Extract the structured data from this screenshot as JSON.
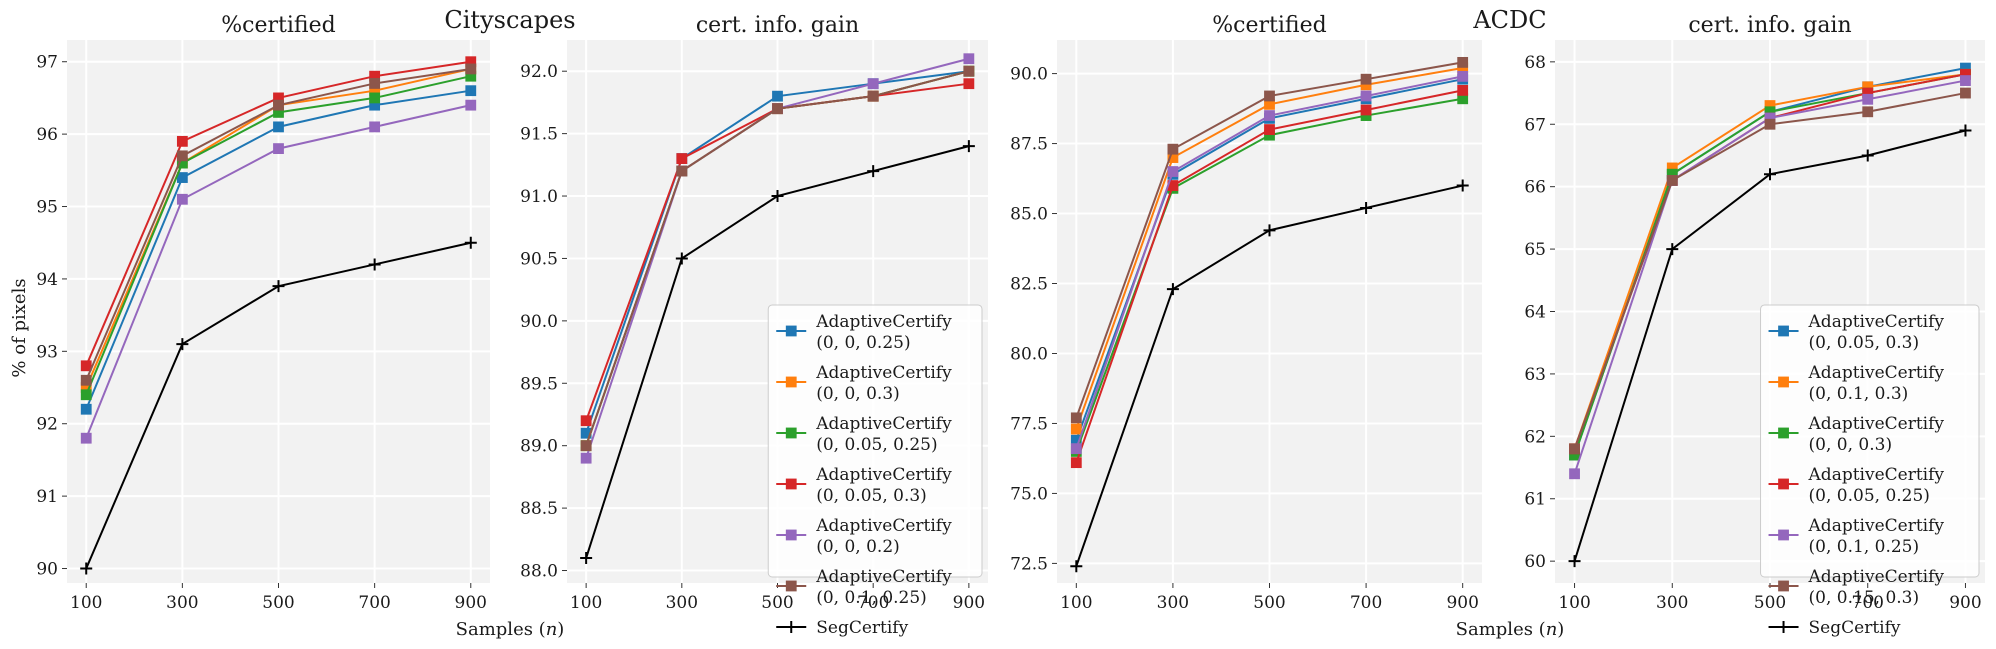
{
  "group_titles": [
    "Cityscapes",
    "ACDC"
  ],
  "xlabel_text": "Samples (n)",
  "xlabel_prefix": "Samples (",
  "xlabel_var": "n",
  "xlabel_suffix": ")",
  "ylabel": "% of pixels",
  "chart_data": [
    {
      "type": "line",
      "group": "Cityscapes",
      "title": "%certified",
      "xlabel": "",
      "ylabel": "% of pixels",
      "x": [
        100,
        300,
        500,
        700,
        900
      ],
      "xlim": [
        60,
        940
      ],
      "ylim": [
        89.8,
        97.3
      ],
      "yticks": [
        90,
        91,
        92,
        93,
        94,
        95,
        96,
        97
      ],
      "ytick_labels": [
        "90",
        "91",
        "92",
        "93",
        "94",
        "95",
        "96",
        "97"
      ],
      "legend": false,
      "series": [
        {
          "name": "AdaptiveCertify (0, 0, 0.25)",
          "color": "#1f77b4",
          "marker": "square",
          "values": [
            92.2,
            95.4,
            96.1,
            96.4,
            96.6
          ]
        },
        {
          "name": "AdaptiveCertify (0, 0, 0.3)",
          "color": "#ff7f0e",
          "marker": "square",
          "values": [
            92.5,
            95.6,
            96.4,
            96.6,
            96.9
          ]
        },
        {
          "name": "AdaptiveCertify (0, 0.05, 0.25)",
          "color": "#2ca02c",
          "marker": "square",
          "values": [
            92.4,
            95.6,
            96.3,
            96.5,
            96.8
          ]
        },
        {
          "name": "AdaptiveCertify (0, 0.05, 0.3)",
          "color": "#d62728",
          "marker": "square",
          "values": [
            92.8,
            95.9,
            96.5,
            96.8,
            97.0
          ]
        },
        {
          "name": "AdaptiveCertify (0, 0, 0.2)",
          "color": "#9467bd",
          "marker": "square",
          "values": [
            91.8,
            95.1,
            95.8,
            96.1,
            96.4
          ]
        },
        {
          "name": "AdaptiveCertify (0, 0.1, 0.25)",
          "color": "#8c564b",
          "marker": "square",
          "values": [
            92.6,
            95.7,
            96.4,
            96.7,
            96.9
          ]
        },
        {
          "name": "SegCertify",
          "color": "#000000",
          "marker": "plus",
          "values": [
            90.0,
            93.1,
            93.9,
            94.2,
            94.5
          ]
        }
      ]
    },
    {
      "type": "line",
      "group": "Cityscapes",
      "title": "cert. info. gain",
      "xlabel": "",
      "ylabel": "",
      "x": [
        100,
        300,
        500,
        700,
        900
      ],
      "xlim": [
        60,
        940
      ],
      "ylim": [
        87.9,
        92.25
      ],
      "yticks": [
        88.0,
        88.5,
        89.0,
        89.5,
        90.0,
        90.5,
        91.0,
        91.5,
        92.0
      ],
      "ytick_labels": [
        "88.0",
        "88.5",
        "89.0",
        "89.5",
        "90.0",
        "90.5",
        "91.0",
        "91.5",
        "92.0"
      ],
      "legend": true,
      "legend_position": "lower-right",
      "series": [
        {
          "name": "AdaptiveCertify",
          "params": "(0, 0, 0.25)",
          "color": "#1f77b4",
          "marker": "square",
          "values": [
            89.1,
            91.3,
            91.8,
            91.9,
            92.0
          ]
        },
        {
          "name": "AdaptiveCertify",
          "params": "(0, 0, 0.3)",
          "color": "#ff7f0e",
          "marker": "square",
          "values": [
            89.0,
            91.2,
            91.7,
            91.8,
            92.0
          ]
        },
        {
          "name": "AdaptiveCertify",
          "params": "(0, 0.05, 0.25)",
          "color": "#2ca02c",
          "marker": "square",
          "values": [
            89.0,
            91.2,
            91.7,
            91.8,
            92.0
          ]
        },
        {
          "name": "AdaptiveCertify",
          "params": "(0, 0.05, 0.3)",
          "color": "#d62728",
          "marker": "square",
          "values": [
            89.2,
            91.3,
            91.7,
            91.8,
            91.9
          ]
        },
        {
          "name": "AdaptiveCertify",
          "params": "(0, 0, 0.2)",
          "color": "#9467bd",
          "marker": "square",
          "values": [
            88.9,
            91.2,
            91.7,
            91.9,
            92.1
          ]
        },
        {
          "name": "AdaptiveCertify",
          "params": "(0, 0.1, 0.25)",
          "color": "#8c564b",
          "marker": "square",
          "values": [
            89.0,
            91.2,
            91.7,
            91.8,
            92.0
          ]
        },
        {
          "name": "SegCertify",
          "params": "",
          "color": "#000000",
          "marker": "plus",
          "values": [
            88.1,
            90.5,
            91.0,
            91.2,
            91.4
          ]
        }
      ]
    },
    {
      "type": "line",
      "group": "ACDC",
      "title": "%certified",
      "xlabel": "",
      "ylabel": "",
      "x": [
        100,
        300,
        500,
        700,
        900
      ],
      "xlim": [
        60,
        940
      ],
      "ylim": [
        71.8,
        91.2
      ],
      "yticks": [
        72.5,
        75.0,
        77.5,
        80.0,
        82.5,
        85.0,
        87.5,
        90.0
      ],
      "ytick_labels": [
        "72.5",
        "75.0",
        "77.5",
        "80.0",
        "82.5",
        "85.0",
        "87.5",
        "90.0"
      ],
      "legend": false,
      "series": [
        {
          "name": "AdaptiveCertify (0, 0, 0.25)",
          "color": "#1f77b4",
          "marker": "square",
          "values": [
            76.9,
            86.4,
            88.4,
            89.1,
            89.8
          ]
        },
        {
          "name": "AdaptiveCertify (0, 0, 0.3)",
          "color": "#ff7f0e",
          "marker": "square",
          "values": [
            77.3,
            87.0,
            88.9,
            89.6,
            90.2
          ]
        },
        {
          "name": "AdaptiveCertify (0, 0.05, 0.25)",
          "color": "#2ca02c",
          "marker": "square",
          "values": [
            76.5,
            85.9,
            87.8,
            88.5,
            89.1
          ]
        },
        {
          "name": "AdaptiveCertify (0, 0.05, 0.3)",
          "color": "#d62728",
          "marker": "square",
          "values": [
            76.1,
            86.0,
            88.0,
            88.7,
            89.4
          ]
        },
        {
          "name": "AdaptiveCertify (0, 0, 0.2)",
          "color": "#9467bd",
          "marker": "square",
          "values": [
            76.6,
            86.5,
            88.5,
            89.2,
            89.9
          ]
        },
        {
          "name": "AdaptiveCertify (0, 0.1, 0.25)",
          "color": "#8c564b",
          "marker": "square",
          "values": [
            77.7,
            87.3,
            89.2,
            89.8,
            90.4
          ]
        },
        {
          "name": "SegCertify",
          "color": "#000000",
          "marker": "plus",
          "values": [
            72.4,
            82.3,
            84.4,
            85.2,
            86.0
          ]
        }
      ]
    },
    {
      "type": "line",
      "group": "ACDC",
      "title": "cert. info. gain",
      "xlabel": "",
      "ylabel": "",
      "x": [
        100,
        300,
        500,
        700,
        900
      ],
      "xlim": [
        60,
        940
      ],
      "ylim": [
        59.65,
        68.35
      ],
      "yticks": [
        60,
        61,
        62,
        63,
        64,
        65,
        66,
        67,
        68
      ],
      "ytick_labels": [
        "60",
        "61",
        "62",
        "63",
        "64",
        "65",
        "66",
        "67",
        "68"
      ],
      "legend": true,
      "legend_position": "lower-right",
      "series": [
        {
          "name": "AdaptiveCertify",
          "params": "(0, 0.05, 0.3)",
          "color": "#1f77b4",
          "marker": "square",
          "values": [
            61.7,
            66.2,
            67.2,
            67.6,
            67.9
          ]
        },
        {
          "name": "AdaptiveCertify",
          "params": "(0, 0.1, 0.3)",
          "color": "#ff7f0e",
          "marker": "square",
          "values": [
            61.8,
            66.3,
            67.3,
            67.6,
            67.8
          ]
        },
        {
          "name": "AdaptiveCertify",
          "params": "(0, 0, 0.3)",
          "color": "#2ca02c",
          "marker": "square",
          "values": [
            61.7,
            66.2,
            67.2,
            67.5,
            67.8
          ]
        },
        {
          "name": "AdaptiveCertify",
          "params": "(0, 0.05, 0.25)",
          "color": "#d62728",
          "marker": "square",
          "values": [
            61.8,
            66.1,
            67.1,
            67.5,
            67.8
          ]
        },
        {
          "name": "AdaptiveCertify",
          "params": "(0, 0.1, 0.25)",
          "color": "#9467bd",
          "marker": "square",
          "values": [
            61.4,
            66.1,
            67.1,
            67.4,
            67.7
          ]
        },
        {
          "name": "AdaptiveCertify",
          "params": "(0, 0.15, 0.3)",
          "color": "#8c564b",
          "marker": "square",
          "values": [
            61.8,
            66.1,
            67.0,
            67.2,
            67.5
          ]
        },
        {
          "name": "SegCertify",
          "params": "",
          "color": "#000000",
          "marker": "plus",
          "values": [
            60.0,
            65.0,
            66.2,
            66.5,
            66.9
          ]
        }
      ]
    }
  ]
}
